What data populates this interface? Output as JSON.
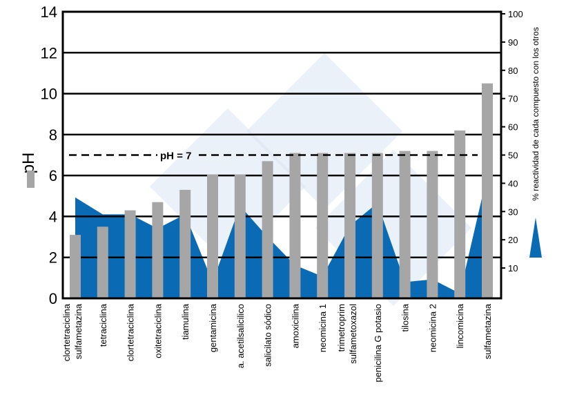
{
  "chart_data": {
    "type": "bar",
    "categories": [
      [
        "clortetraciclina",
        "sulfametazina"
      ],
      [
        "tetraciclina"
      ],
      [
        "clortetraciclina"
      ],
      [
        "oxitetraciclina"
      ],
      [
        "tiamulina"
      ],
      [
        "gentamicina"
      ],
      [
        "a. acetilsalicilico"
      ],
      [
        "salicilato sódico"
      ],
      [
        "amoxicilina"
      ],
      [
        "neomicina 1"
      ],
      [
        "trimetroprim",
        "sulfametoxazol"
      ],
      [
        "penicilina G potasio"
      ],
      [
        "tilosina"
      ],
      [
        "neomicina 2"
      ],
      [
        "lincomicina"
      ],
      [
        "sulfametazina"
      ]
    ],
    "series": [
      {
        "name": "pH",
        "type": "bar",
        "axis": "left",
        "color": "#a6a6a6",
        "values": [
          3.1,
          3.5,
          4.3,
          4.7,
          5.3,
          6.05,
          6.05,
          6.7,
          7.1,
          7.1,
          7.1,
          7.1,
          7.2,
          7.2,
          8.2,
          10.5
        ]
      },
      {
        "name": "% reactividad de cada compuesto con los otros",
        "type": "area",
        "axis": "right",
        "color": "#0a6ab4",
        "values": [
          35,
          29,
          29,
          24,
          29,
          5,
          32,
          21,
          11,
          7,
          25,
          33,
          5,
          6,
          1,
          43
        ]
      }
    ],
    "ylabel": "pH",
    "y2label": "% reactividad de cada compuesto con los otros",
    "ylim": [
      0,
      14
    ],
    "y2lim": [
      0,
      100
    ],
    "yticks": [
      0,
      2,
      4,
      6,
      8,
      10,
      12,
      14
    ],
    "y2ticks": [
      10,
      20,
      30,
      40,
      50,
      60,
      70,
      80,
      90,
      100
    ],
    "reference_line": {
      "value": 7,
      "label": "pH = 7",
      "style": "dashed"
    },
    "grid": true
  }
}
